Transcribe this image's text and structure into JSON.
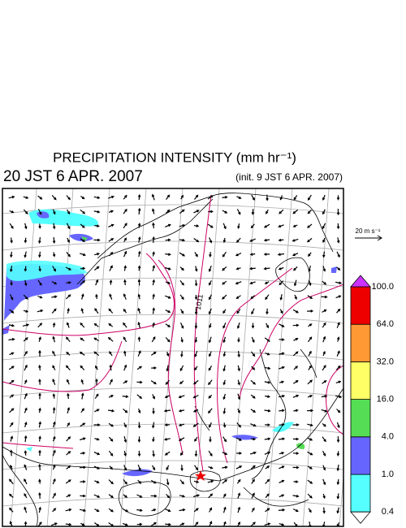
{
  "header": {
    "title": "PRECIPITATION INTENSITY (mm hr⁻¹)",
    "valid_time": "20 JST 6 APR. 2007",
    "init_time": "(init. 9 JST 6 APR. 2007)"
  },
  "wind_reference": {
    "label": "20 m s⁻¹"
  },
  "isobar_labels": [
    "1011"
  ],
  "colorbar": {
    "levels": [
      {
        "value": 0.4,
        "label": "0.4"
      },
      {
        "value": 1,
        "label": "1.0"
      },
      {
        "value": 4,
        "label": "4.0"
      },
      {
        "value": 16,
        "label": "16.0"
      },
      {
        "value": 32,
        "label": "32.0"
      },
      {
        "value": 64,
        "label": "64.0"
      },
      {
        "value": 100,
        "label": "100.0"
      }
    ],
    "colors": [
      "#55ffff",
      "#6666ff",
      "#55dd55",
      "#ffff66",
      "#ff9933",
      "#ee0000"
    ],
    "under_color": "#ffffff",
    "over_color": "#cc33ff"
  }
}
